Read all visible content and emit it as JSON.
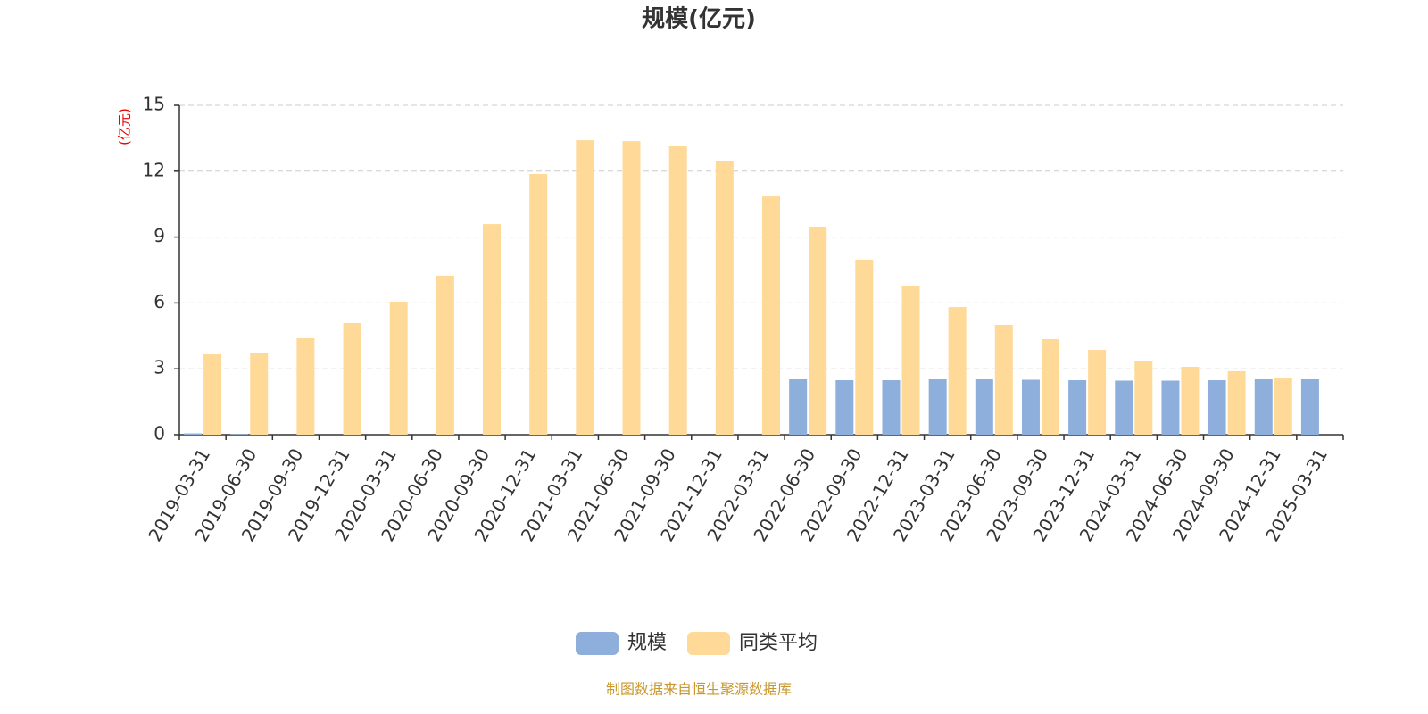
{
  "chart_data": {
    "type": "bar",
    "title": "规模(亿元)",
    "y_label": "(亿元)",
    "categories": [
      "2019-03-31",
      "2019-06-30",
      "2019-09-30",
      "2019-12-31",
      "2020-03-31",
      "2020-06-30",
      "2020-09-30",
      "2020-12-31",
      "2021-03-31",
      "2021-06-30",
      "2021-09-30",
      "2021-12-31",
      "2022-03-31",
      "2022-06-30",
      "2022-09-30",
      "2022-12-31",
      "2023-03-31",
      "2023-06-30",
      "2023-09-30",
      "2023-12-31",
      "2024-03-31",
      "2024-06-30",
      "2024-09-30",
      "2024-12-31",
      "2025-03-31"
    ],
    "series": [
      {
        "name": "规模",
        "color": "#8eaedc",
        "values": [
          0.06,
          0.02,
          null,
          null,
          null,
          null,
          null,
          null,
          null,
          null,
          null,
          null,
          null,
          2.52,
          2.48,
          2.48,
          2.52,
          2.52,
          2.5,
          2.48,
          2.46,
          2.46,
          2.48,
          2.52,
          2.52
        ]
      },
      {
        "name": "同类平均",
        "color": "#ffd998",
        "values": [
          3.66,
          3.74,
          4.39,
          5.08,
          6.06,
          7.24,
          9.59,
          11.87,
          13.41,
          13.37,
          13.13,
          12.48,
          10.85,
          9.47,
          7.97,
          6.79,
          5.81,
          5.0,
          4.35,
          3.86,
          3.37,
          3.09,
          2.89,
          2.56,
          null
        ]
      }
    ],
    "ylim": [
      0,
      15
    ],
    "yticks": [
      0,
      3,
      6,
      9,
      12,
      15
    ],
    "grid": true,
    "legend": "bottom",
    "source": "制图数据来自恒生聚源数据库"
  }
}
